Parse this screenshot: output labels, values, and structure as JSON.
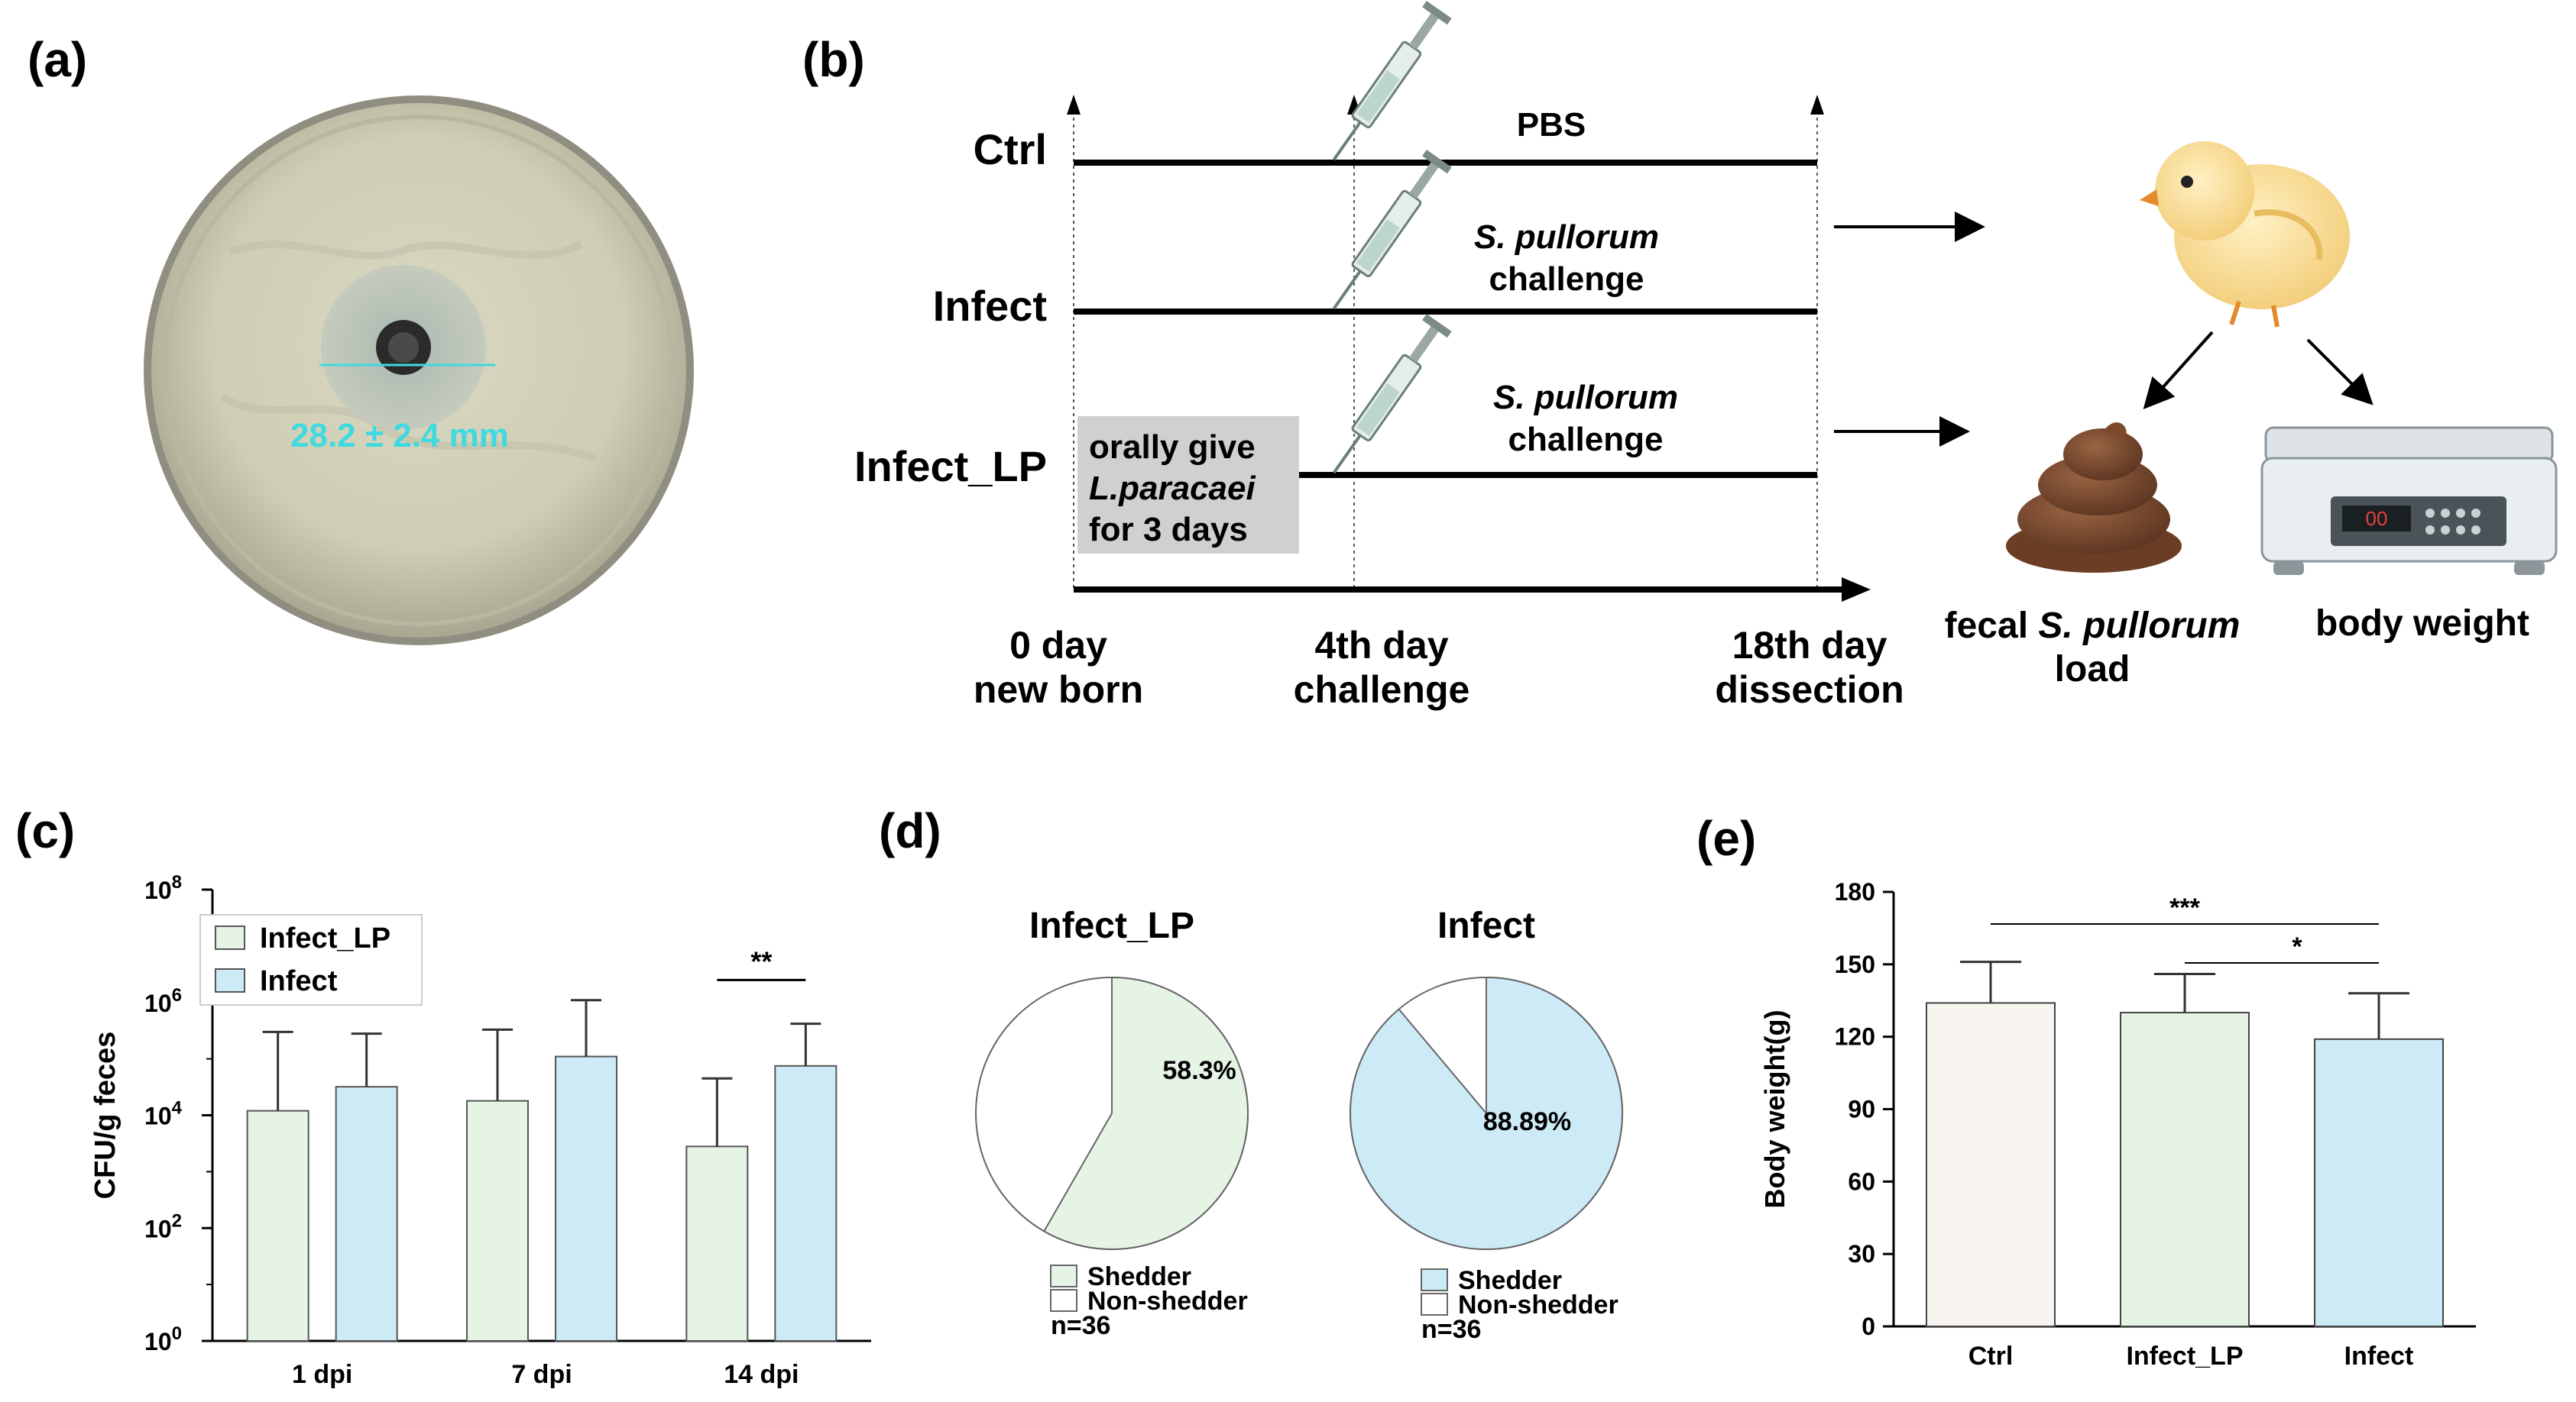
{
  "panel_labels": {
    "a": "(a)",
    "b": "(b)",
    "c": "(c)",
    "d": "(d)",
    "e": "(e)"
  },
  "colors": {
    "infect_lp": "#e6f4e6",
    "infect": "#cdeaf7",
    "ctrl": "#f8f5f0",
    "measure": "#3fd9df",
    "gray_box": "#d0d0d0"
  },
  "panel_a": {
    "measurement": "28.2 ± 2.4 mm"
  },
  "panel_b": {
    "groups": [
      "Ctrl",
      "Infect",
      "Infect_LP"
    ],
    "ctrl_treatment": "PBS",
    "challenge_line1": "S. pullorum",
    "challenge_line2": "challenge",
    "oral_line1": "orally give",
    "oral_line2": "L.paracaei",
    "oral_line3": "for 3 days",
    "timepoints": [
      {
        "line1": "0 day",
        "line2": "new born"
      },
      {
        "line1": "4th day",
        "line2": "challenge"
      },
      {
        "line1": "18th day",
        "line2": "dissection"
      }
    ],
    "fecal_prefix": "fecal ",
    "fecal_italic": "S. pullorum",
    "fecal_line2": "load",
    "body_weight": "body weight",
    "scale_display": "00"
  },
  "chart_data": [
    {
      "panel": "c",
      "type": "bar",
      "scale": "log10",
      "ylabel": "CFU/g feces",
      "ylim": [
        1,
        100000000
      ],
      "yticks": [
        {
          "base": "10",
          "exp": "0"
        },
        {
          "base": "10",
          "exp": "2"
        },
        {
          "base": "10",
          "exp": "4"
        },
        {
          "base": "10",
          "exp": "6"
        },
        {
          "base": "10",
          "exp": "8"
        }
      ],
      "categories": [
        "1 dpi",
        "7 dpi",
        "14 dpi"
      ],
      "series": [
        {
          "name": "Infect_LP",
          "values": [
            12000,
            18000,
            2800
          ],
          "errors_upper": [
            300000,
            330000,
            45000
          ]
        },
        {
          "name": "Infect",
          "values": [
            32000,
            110000,
            75000
          ],
          "errors_upper": [
            280000,
            1100000,
            420000
          ]
        }
      ],
      "annotations": [
        {
          "text": "**",
          "category": "14 dpi"
        }
      ]
    },
    {
      "panel": "d",
      "type": "pie",
      "charts": [
        {
          "title": "Infect_LP",
          "shedder_pct": 58.3,
          "label": "58.3%",
          "n": "n=36"
        },
        {
          "title": "Infect",
          "shedder_pct": 88.89,
          "label": "88.89%",
          "n": "n=36"
        }
      ],
      "legend": [
        "Shedder",
        "Non-shedder"
      ]
    },
    {
      "panel": "e",
      "type": "bar",
      "ylabel": "Body weight(g)",
      "ylim": [
        0,
        180
      ],
      "yticks": [
        0,
        30,
        60,
        90,
        120,
        150,
        180
      ],
      "categories": [
        "Ctrl",
        "Infect_LP",
        "Infect"
      ],
      "values": [
        134,
        130,
        119
      ],
      "errors_upper": [
        151,
        146,
        138
      ],
      "significance": [
        {
          "from": "Ctrl",
          "to": "Infect",
          "text": "***"
        },
        {
          "from": "Infect_LP",
          "to": "Infect",
          "text": "*"
        }
      ]
    }
  ]
}
